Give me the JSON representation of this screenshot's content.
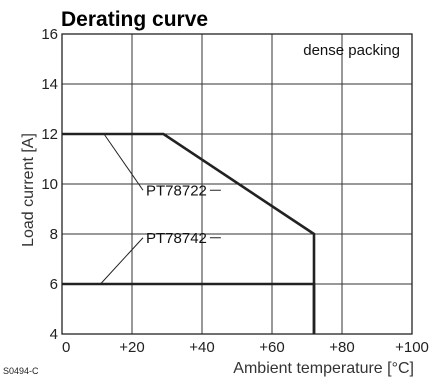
{
  "chart_data": {
    "type": "line",
    "title": "Derating curve",
    "xlabel": "Ambient temperature [°C]",
    "ylabel": "Load current [A]",
    "annotation": "dense packing",
    "figure_code": "S0494-C",
    "xlim": [
      0,
      100
    ],
    "ylim": [
      4,
      16
    ],
    "xticks": [
      0,
      20,
      40,
      60,
      80,
      100
    ],
    "xtick_labels": [
      "0",
      "+20",
      "+40",
      "+60",
      "+80",
      "+100"
    ],
    "yticks": [
      4,
      6,
      8,
      10,
      12,
      14,
      16
    ],
    "ytick_labels": [
      "4",
      "6",
      "8",
      "10",
      "12",
      "14",
      "16"
    ],
    "grid": true,
    "series": [
      {
        "name": "PT78722",
        "points": [
          [
            0,
            12
          ],
          [
            29,
            12
          ],
          [
            72,
            8
          ],
          [
            72,
            4
          ]
        ]
      },
      {
        "name": "PT78742",
        "points": [
          [
            0,
            6
          ],
          [
            72,
            6
          ],
          [
            72,
            4
          ]
        ]
      }
    ]
  }
}
